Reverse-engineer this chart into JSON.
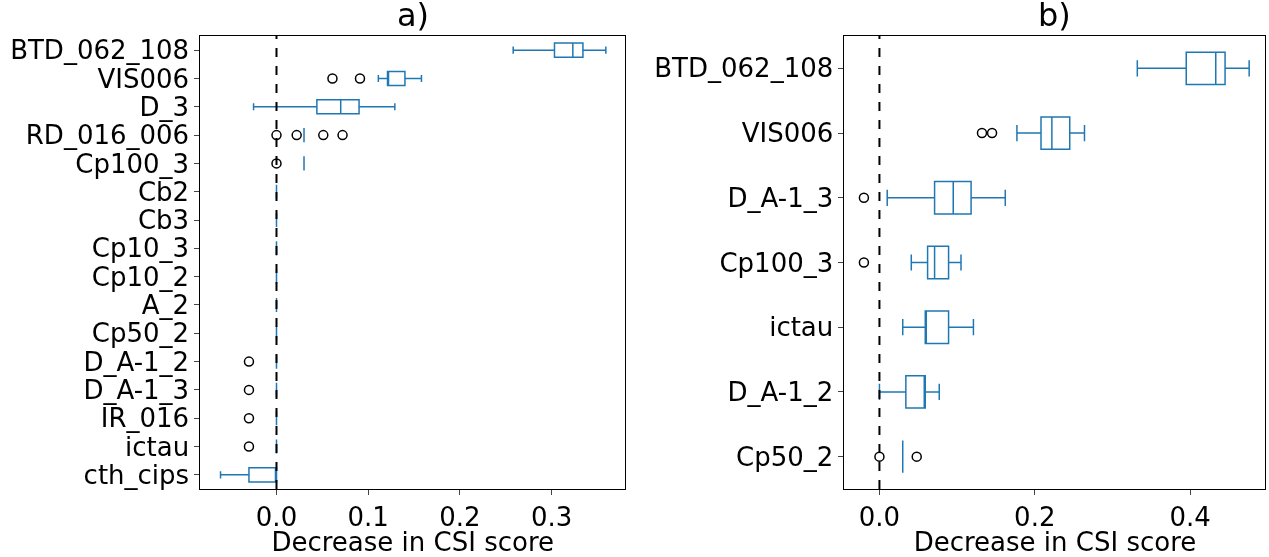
{
  "chart_data": [
    {
      "type": "box",
      "title": "a)",
      "xlabel": "Decrease in CSI score",
      "orientation": "horizontal",
      "color": "#1f77b4",
      "marker": "circle",
      "categories": [
        "BTD_062_108",
        "VIS006",
        "D_3",
        "RD_016_006",
        "Cp100_3",
        "Cb2",
        "Cb3",
        "Cp10_3",
        "Cp10_2",
        "A_2",
        "Cp50_2",
        "D_A-1_2",
        "D_A-1_3",
        "IR_016",
        "ictau",
        "cth_cips"
      ],
      "xlim": [
        -0.083,
        0.38
      ],
      "xticks": [
        {
          "value": 0,
          "label": "0.0"
        },
        0.1,
        0.2,
        0.3
      ],
      "boxes": [
        {
          "low": 0.258,
          "q1": 0.303,
          "median": 0.323,
          "q3": 0.334,
          "high": 0.359
        },
        {
          "low": 0.111,
          "q1": 0.121,
          "median": 0.121,
          "q3": 0.14,
          "high": 0.158,
          "outliers": [
            0.061,
            0.091
          ]
        },
        {
          "low": -0.025,
          "q1": 0.044,
          "median": 0.07,
          "q3": 0.09,
          "high": 0.129
        },
        {
          "low": 0.03,
          "q1": 0.03,
          "median": 0.03,
          "q3": 0.03,
          "high": 0.03,
          "outliers": [
            0.0,
            0.022,
            0.051,
            0.072
          ]
        },
        {
          "low": 0.03,
          "q1": 0.03,
          "median": 0.03,
          "q3": 0.03,
          "high": 0.03,
          "outliers": [
            0.0
          ]
        },
        {
          "low": 0.0,
          "q1": 0.0,
          "median": 0.0,
          "q3": 0.0,
          "high": 0.0
        },
        {
          "low": 0.0,
          "q1": 0.0,
          "median": 0.0,
          "q3": 0.0,
          "high": 0.0
        },
        {
          "low": 0.0,
          "q1": 0.0,
          "median": 0.0,
          "q3": 0.0,
          "high": 0.0
        },
        {
          "low": 0.0,
          "q1": 0.0,
          "median": 0.0,
          "q3": 0.0,
          "high": 0.0
        },
        {
          "low": 0.0,
          "q1": 0.0,
          "median": 0.0,
          "q3": 0.0,
          "high": 0.0
        },
        {
          "low": 0.0,
          "q1": 0.0,
          "median": 0.0,
          "q3": 0.0,
          "high": 0.0
        },
        {
          "low": 0.0,
          "q1": 0.0,
          "median": 0.0,
          "q3": 0.0,
          "high": 0.0,
          "outliers": [
            -0.03
          ]
        },
        {
          "low": 0.0,
          "q1": 0.0,
          "median": 0.0,
          "q3": 0.0,
          "high": 0.0,
          "outliers": [
            -0.03
          ]
        },
        {
          "low": 0.0,
          "q1": 0.0,
          "median": 0.0,
          "q3": 0.0,
          "high": 0.0,
          "outliers": [
            -0.03
          ]
        },
        {
          "low": 0.0,
          "q1": 0.0,
          "median": 0.0,
          "q3": 0.0,
          "high": 0.0,
          "outliers": [
            -0.03
          ]
        },
        {
          "low": -0.061,
          "q1": -0.03,
          "median": 0.0,
          "q3": 0.0,
          "high": 0.0
        }
      ],
      "ref_lines": [
        {
          "axis": "x",
          "value": 0,
          "color": "#000000",
          "line_style": "dashed"
        }
      ]
    },
    {
      "type": "box",
      "title": "b)",
      "xlabel": "Decrease in CSI score",
      "orientation": "horizontal",
      "color": "#1f77b4",
      "marker": "circle",
      "categories": [
        "BTD_062_108",
        "VIS006",
        "D_A-1_3",
        "Cp100_3",
        "ictau",
        "D_A-1_2",
        "Cp50_2"
      ],
      "xlim": [
        -0.045,
        0.497
      ],
      "xticks": [
        {
          "value": 0,
          "label": "0.0"
        },
        0.2,
        0.4
      ],
      "boxes": [
        {
          "low": 0.332,
          "q1": 0.395,
          "median": 0.433,
          "q3": 0.445,
          "high": 0.476
        },
        {
          "low": 0.177,
          "q1": 0.208,
          "median": 0.222,
          "q3": 0.245,
          "high": 0.264,
          "outliers": [
            0.132,
            0.145
          ]
        },
        {
          "low": 0.01,
          "q1": 0.071,
          "median": 0.095,
          "q3": 0.118,
          "high": 0.162,
          "outliers": [
            -0.02
          ]
        },
        {
          "low": 0.041,
          "q1": 0.062,
          "median": 0.071,
          "q3": 0.089,
          "high": 0.105,
          "outliers": [
            -0.02
          ]
        },
        {
          "low": 0.03,
          "q1": 0.059,
          "median": 0.059,
          "q3": 0.089,
          "high": 0.121
        },
        {
          "low": 0.0,
          "q1": 0.034,
          "median": 0.059,
          "q3": 0.059,
          "high": 0.077
        },
        {
          "low": 0.03,
          "q1": 0.03,
          "median": 0.03,
          "q3": 0.03,
          "high": 0.03,
          "outliers": [
            0.0,
            0.048
          ]
        }
      ],
      "ref_lines": [
        {
          "axis": "x",
          "value": 0,
          "color": "#000000",
          "line_style": "dashed"
        }
      ]
    }
  ]
}
